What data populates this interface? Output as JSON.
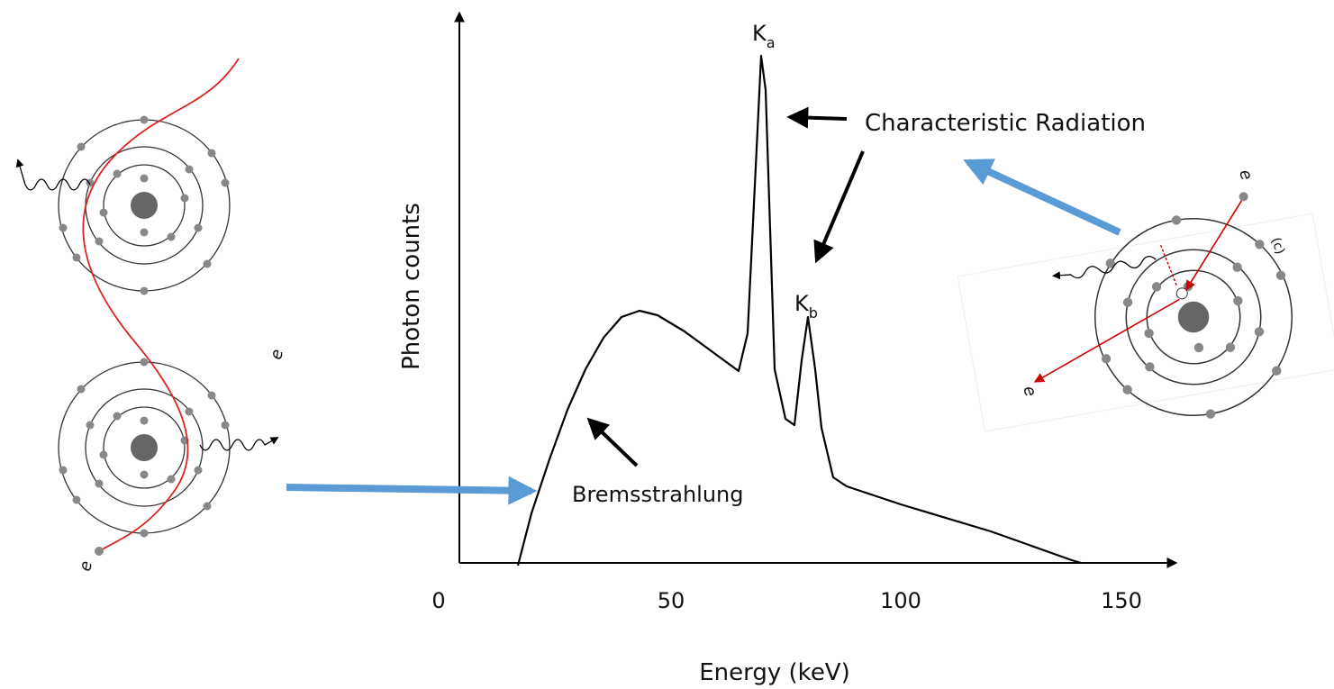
{
  "spectrum": {
    "y_axis_label": "Photon counts",
    "x_axis_label": "Energy (keV)",
    "x_ticks": [
      "0",
      "50",
      "100",
      "150"
    ],
    "peak_a": {
      "main": "K",
      "sub": "a"
    },
    "peak_b": {
      "main": "K",
      "sub": "b"
    },
    "annotations": {
      "characteristic": "Characteristic Radiation",
      "bremsstrahlung": "Bremsstrahlung"
    }
  },
  "left_diagram": {
    "electron_in": "e",
    "electron_side": "e"
  },
  "right_diagram": {
    "electron_in": "e",
    "electron_out": "e",
    "shell_label": "(c)"
  }
}
